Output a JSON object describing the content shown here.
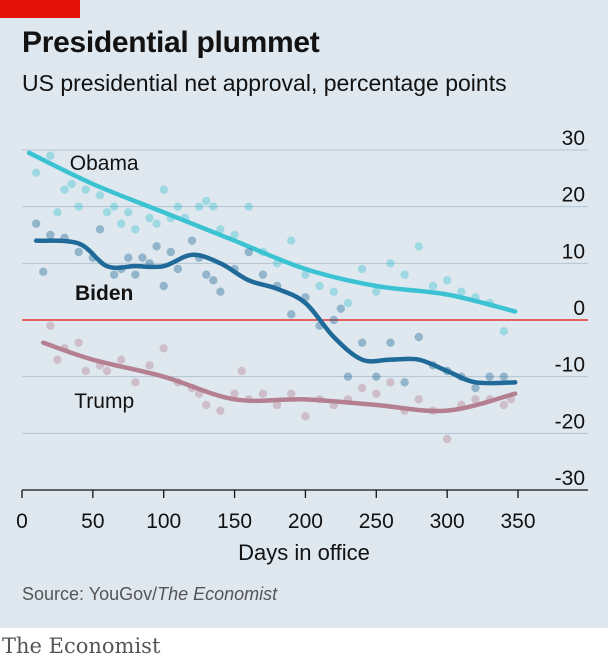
{
  "title": "Presidential plummet",
  "subtitle": "US presidential net approval, percentage points",
  "source_prefix": "Source: YouGov/",
  "source_italic": "The Economist",
  "brand": "The Economist",
  "colors": {
    "background": "#dfe8ef",
    "obama": "#3bc3d3",
    "biden": "#1f6a99",
    "trump": "#b57f92",
    "zero_line": "#e3120b",
    "brand_red": "#e3120b"
  },
  "chart_data": {
    "type": "scatter",
    "xlabel": "Days in office",
    "xlim": [
      0,
      350
    ],
    "ylim": [
      -30,
      30
    ],
    "x_ticks": [
      0,
      50,
      100,
      150,
      200,
      250,
      300,
      350
    ],
    "y_ticks": [
      30,
      20,
      10,
      0,
      -10,
      -20,
      -30
    ],
    "y_tick_labels": [
      "30",
      "20",
      "10",
      "0",
      "-10",
      "-20",
      "-30"
    ],
    "grid": true,
    "series": [
      {
        "name": "Obama",
        "label_weight": "normal",
        "trend": {
          "x": [
            5,
            50,
            100,
            150,
            200,
            250,
            300,
            348
          ],
          "y": [
            29.5,
            24,
            19,
            14,
            9,
            6,
            4.5,
            1.5
          ]
        },
        "points": {
          "x": [
            10,
            20,
            25,
            30,
            35,
            40,
            45,
            55,
            60,
            65,
            70,
            75,
            80,
            90,
            95,
            100,
            105,
            110,
            115,
            125,
            130,
            135,
            140,
            150,
            160,
            170,
            180,
            190,
            200,
            210,
            220,
            230,
            240,
            250,
            260,
            270,
            280,
            290,
            300,
            310,
            320,
            330,
            340
          ],
          "y": [
            26,
            29,
            19,
            23,
            24,
            20,
            23,
            22,
            19,
            20,
            17,
            19,
            16,
            18,
            17,
            23,
            18,
            20,
            18,
            20,
            21,
            20,
            16,
            15,
            20,
            12,
            10,
            14,
            8,
            6,
            5,
            3,
            9,
            5,
            10,
            8,
            13,
            6,
            7,
            5,
            4,
            3,
            -2
          ]
        }
      },
      {
        "name": "Biden",
        "label_weight": "bold",
        "trend": {
          "x": [
            10,
            40,
            60,
            80,
            100,
            120,
            140,
            160,
            180,
            200,
            220,
            240,
            260,
            280,
            300,
            320,
            348
          ],
          "y": [
            14,
            13.5,
            9.5,
            9.5,
            9.5,
            11.5,
            10,
            7,
            5.5,
            3,
            -3,
            -7,
            -7,
            -7,
            -9,
            -11,
            -11
          ]
        },
        "points": {
          "x": [
            10,
            15,
            20,
            30,
            40,
            50,
            55,
            65,
            70,
            75,
            80,
            85,
            90,
            95,
            100,
            105,
            110,
            120,
            125,
            130,
            135,
            140,
            150,
            160,
            170,
            180,
            190,
            200,
            210,
            220,
            225,
            230,
            240,
            250,
            260,
            270,
            280,
            290,
            300,
            310,
            320,
            330,
            340
          ],
          "y": [
            17,
            8.5,
            15,
            14.5,
            12,
            11,
            16,
            8,
            9,
            11,
            8,
            11,
            10,
            13,
            6,
            12,
            9,
            14,
            11,
            8,
            7,
            5,
            9,
            12,
            8,
            6,
            1,
            4,
            -1,
            0,
            2,
            -10,
            -4,
            -10,
            -4,
            -11,
            -3,
            -8,
            -9,
            -10,
            -12,
            -10,
            -10
          ]
        }
      },
      {
        "name": "Trump",
        "label_weight": "normal",
        "trend": {
          "x": [
            15,
            50,
            100,
            150,
            200,
            250,
            300,
            348
          ],
          "y": [
            -4,
            -7,
            -10,
            -14,
            -14,
            -15,
            -16,
            -13
          ]
        },
        "points": {
          "x": [
            20,
            25,
            30,
            40,
            45,
            55,
            60,
            70,
            80,
            90,
            100,
            110,
            120,
            125,
            130,
            140,
            150,
            155,
            160,
            170,
            180,
            190,
            200,
            210,
            220,
            230,
            240,
            250,
            260,
            270,
            280,
            290,
            300,
            310,
            320,
            330,
            340,
            345
          ],
          "y": [
            -1,
            -7,
            -5,
            -4,
            -9,
            -8,
            -9,
            -7,
            -11,
            -8,
            -5,
            -11,
            -12,
            -13,
            -15,
            -16,
            -13,
            -9,
            -14,
            -13,
            -15,
            -13,
            -17,
            -14,
            -15,
            -14,
            -12,
            -13,
            -11,
            -16,
            -14,
            -16,
            -21,
            -15,
            -14,
            -14,
            -15,
            -14
          ]
        }
      }
    ]
  }
}
